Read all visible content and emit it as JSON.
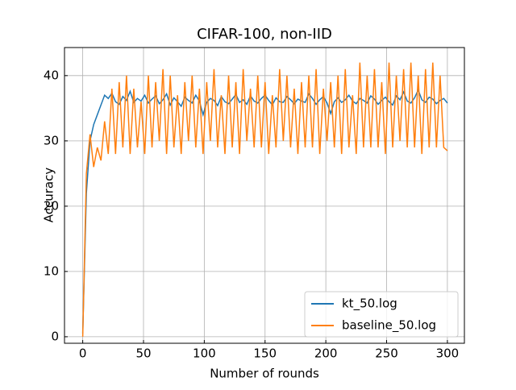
{
  "chart_data": {
    "type": "line",
    "title": "CIFAR-100, non-IID",
    "xlabel": "Number of rounds",
    "ylabel": "Accuracy",
    "x": [
      0,
      3,
      6,
      9,
      12,
      15,
      18,
      21,
      24,
      27,
      30,
      33,
      36,
      39,
      42,
      45,
      48,
      51,
      54,
      57,
      60,
      63,
      66,
      69,
      72,
      75,
      78,
      81,
      84,
      87,
      90,
      93,
      96,
      99,
      102,
      105,
      108,
      111,
      114,
      117,
      120,
      123,
      126,
      129,
      132,
      135,
      138,
      141,
      144,
      147,
      150,
      153,
      156,
      159,
      162,
      165,
      168,
      171,
      174,
      177,
      180,
      183,
      186,
      189,
      192,
      195,
      198,
      201,
      204,
      207,
      210,
      213,
      216,
      219,
      222,
      225,
      228,
      231,
      234,
      237,
      240,
      243,
      246,
      249,
      252,
      255,
      258,
      261,
      264,
      267,
      270,
      273,
      276,
      279,
      282,
      285,
      288,
      291,
      294,
      297,
      300
    ],
    "series": [
      {
        "name": "kt_50.log",
        "color": "#1f77b4",
        "values": [
          0.5,
          22,
          30,
          32.5,
          34,
          35.5,
          37,
          36.5,
          37.3,
          36,
          35.6,
          36.8,
          36.2,
          37.6,
          35.9,
          36.5,
          36.1,
          37,
          35.8,
          36.4,
          36.9,
          35.7,
          36.3,
          37.2,
          35.5,
          36.6,
          36,
          35.3,
          36.7,
          36.2,
          35.8,
          37,
          36.1,
          34,
          35.9,
          36.5,
          36.2,
          35.4,
          36.8,
          36,
          35.7,
          36.4,
          37.1,
          35.9,
          36.3,
          35.6,
          36.9,
          36.1,
          35.8,
          36.5,
          37,
          36.2,
          35.5,
          36.6,
          36,
          35.9,
          36.8,
          36.3,
          35.7,
          36.4,
          36.1,
          35.9,
          37.2,
          36.5,
          35.6,
          36.3,
          36.8,
          35.8,
          34.2,
          36,
          36.6,
          35.9,
          36.3,
          37,
          36.1,
          35.7,
          36.5,
          36.2,
          35.8,
          36.9,
          36.4,
          35.6,
          36.2,
          36.7,
          36,
          35.5,
          36.9,
          36.3,
          37.5,
          36.1,
          35.8,
          36.6,
          37.8,
          36.3,
          35.9,
          36.7,
          36.4,
          35.7,
          36.2,
          36.5,
          35.8
        ]
      },
      {
        "name": "baseline_50.log",
        "color": "#ff7f0e",
        "values": [
          0,
          25,
          31,
          26,
          29,
          27,
          33,
          28,
          38,
          28,
          39,
          29,
          40,
          28,
          38,
          29,
          36,
          28,
          40,
          29,
          39,
          30,
          41,
          28,
          40,
          29,
          37,
          28,
          39,
          30,
          40,
          29,
          38,
          28,
          39,
          30,
          41,
          29,
          37,
          28,
          40,
          29,
          39,
          28,
          41,
          30,
          38,
          29,
          40,
          29,
          39,
          28,
          37,
          29,
          41,
          30,
          40,
          29,
          38,
          28,
          39,
          29,
          40,
          29,
          41,
          28,
          38,
          30,
          39,
          29,
          40,
          28,
          41,
          29,
          37,
          28,
          42,
          29,
          40,
          29,
          41,
          29,
          39,
          28,
          42,
          29,
          40,
          30,
          41,
          29,
          42,
          29,
          40,
          28,
          41,
          29,
          42,
          29,
          40,
          29,
          28.5
        ]
      }
    ],
    "xlim": [
      -15,
      314
    ],
    "ylim": [
      -1,
      44.3
    ],
    "xticks": [
      0,
      50,
      100,
      150,
      200,
      250,
      300
    ],
    "yticks": [
      0,
      10,
      20,
      30,
      40
    ],
    "grid": true,
    "legend": "lower right"
  }
}
